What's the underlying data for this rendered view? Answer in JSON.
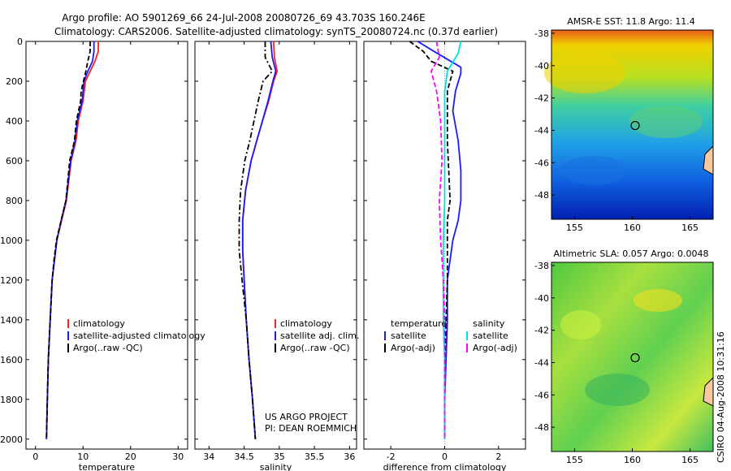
{
  "colors": {
    "climatology": "#ff2020",
    "satellite": "#1a1aff",
    "argo": "#000000",
    "sal_satellite": "#00e0e0",
    "sal_argo": "#ff00ff"
  },
  "title": {
    "line1": "Argo profile: AO 5901269_66 24-Jul-2008 20080726_69 43.703S 160.246E",
    "line2": "Climatology: CARS2006. Satellite-adjusted climatology: synTS_20080724.nc (0.37d earlier)"
  },
  "credits": {
    "line1": "US ARGO PROJECT",
    "line2": "PI: DEAN ROEMMICH"
  },
  "side_label": "CSIRO 04-Aug-2008 10:31:16",
  "legends": {
    "temperature": [
      "climatology",
      "satellite-adjusted climatology",
      "Argo(..raw -QC)"
    ],
    "salinity": [
      "climatology",
      "satellite adj. clim.",
      "Argo(..raw -QC)"
    ],
    "difference": {
      "head_t": "temperature",
      "head_s": "salinity",
      "sat": "satellite",
      "argo": "Argo(-adj)"
    }
  },
  "chart_data": [
    {
      "type": "line",
      "title": "",
      "xlabel": "temperature",
      "ylabel": "",
      "xlim": [
        -2,
        32
      ],
      "ylim": [
        2050,
        0
      ],
      "xticks": [
        0,
        10,
        20,
        30
      ],
      "yticks": [
        0,
        200,
        400,
        600,
        800,
        1000,
        1200,
        1400,
        1600,
        1800,
        2000
      ],
      "series": [
        {
          "name": "climatology",
          "style": "solid",
          "color": "climatology",
          "x": [
            13.2,
            13.2,
            12.5,
            11.5,
            10.5,
            10,
            9,
            8.5,
            7.5,
            6.5,
            5.5,
            4.5,
            4,
            3.5,
            3.1,
            2.7,
            2.5,
            2.3
          ],
          "y": [
            0,
            50,
            100,
            150,
            200,
            300,
            400,
            500,
            600,
            800,
            900,
            1000,
            1100,
            1200,
            1400,
            1600,
            1800,
            2000
          ]
        },
        {
          "name": "satellite-adjusted climatology",
          "style": "solid",
          "color": "satellite",
          "x": [
            12.3,
            12.3,
            12.0,
            11.0,
            10.2,
            9.8,
            8.8,
            8.3,
            7.4,
            6.4,
            5.4,
            4.5,
            4,
            3.5,
            3.1,
            2.7,
            2.5,
            2.3
          ],
          "y": [
            0,
            50,
            100,
            150,
            200,
            300,
            400,
            500,
            600,
            800,
            900,
            1000,
            1100,
            1200,
            1400,
            1600,
            1800,
            2000
          ]
        },
        {
          "name": "Argo(..raw -QC)",
          "style": "dash",
          "color": "argo",
          "x": [
            11.5,
            11.5,
            11,
            10.6,
            9.6,
            9.5,
            8.6,
            8.2,
            7.2,
            6.4,
            5.4,
            4.4,
            3.9,
            3.5,
            3.1,
            2.7,
            2.5,
            2.3
          ],
          "y": [
            0,
            50,
            100,
            150,
            250,
            300,
            400,
            500,
            600,
            800,
            900,
            1000,
            1100,
            1200,
            1400,
            1600,
            1800,
            2000
          ]
        }
      ]
    },
    {
      "type": "line",
      "title": "",
      "xlabel": "salinity",
      "ylabel": "",
      "xlim": [
        33.8,
        36.1
      ],
      "ylim": [
        2050,
        0
      ],
      "xticks": [
        34,
        34.5,
        35,
        35.5,
        36
      ],
      "yticks": [
        0,
        200,
        400,
        600,
        800,
        1000,
        1200,
        1400,
        1600,
        1800,
        2000
      ],
      "series": [
        {
          "name": "climatology",
          "style": "solid",
          "color": "climatology",
          "x": [
            34.92,
            34.93,
            34.97,
            34.92,
            34.85,
            34.76,
            34.68,
            34.6,
            34.52,
            34.48,
            34.48,
            34.5,
            34.53,
            34.57,
            34.62,
            34.66
          ],
          "y": [
            0,
            80,
            150,
            200,
            300,
            400,
            500,
            600,
            750,
            900,
            1050,
            1200,
            1400,
            1600,
            1800,
            2000
          ]
        },
        {
          "name": "satellite adj. clim.",
          "style": "solid",
          "color": "satellite",
          "x": [
            34.88,
            34.9,
            34.95,
            34.91,
            34.84,
            34.76,
            34.68,
            34.6,
            34.52,
            34.48,
            34.48,
            34.5,
            34.53,
            34.57,
            34.62,
            34.66
          ],
          "y": [
            0,
            80,
            150,
            200,
            300,
            400,
            500,
            600,
            750,
            900,
            1050,
            1200,
            1400,
            1600,
            1800,
            2000
          ]
        },
        {
          "name": "Argo(..raw -QC)",
          "style": "dashdot",
          "color": "argo",
          "x": [
            34.8,
            34.8,
            34.9,
            34.77,
            34.7,
            34.64,
            34.58,
            34.51,
            34.45,
            34.43,
            34.43,
            34.47,
            34.53,
            34.57,
            34.62,
            34.66
          ],
          "y": [
            0,
            80,
            150,
            200,
            300,
            400,
            500,
            600,
            750,
            900,
            1050,
            1200,
            1400,
            1600,
            1800,
            2000
          ]
        }
      ]
    },
    {
      "type": "line",
      "title": "",
      "xlabel": "difference from climatology",
      "ylabel": "",
      "xlim": [
        -3,
        3
      ],
      "ylim": [
        2050,
        0
      ],
      "xticks": [
        -2,
        0,
        2
      ],
      "yticks": [
        0,
        200,
        400,
        600,
        800,
        1000,
        1200,
        1400,
        1600,
        1800,
        2000
      ],
      "series": [
        {
          "name": "temperature satellite",
          "style": "solid",
          "color": "satellite",
          "x": [
            -1.0,
            -0.4,
            0.6,
            0.6,
            0.4,
            0.3,
            0.5,
            0.6,
            0.6,
            0.5,
            0.3,
            0.2,
            0.1,
            0.1,
            0.05,
            0,
            0
          ],
          "y": [
            0,
            50,
            130,
            160,
            250,
            350,
            500,
            650,
            800,
            900,
            1000,
            1100,
            1200,
            1400,
            1600,
            1800,
            2000
          ]
        },
        {
          "name": "temperature Argo(-adj)",
          "style": "dash",
          "color": "argo",
          "x": [
            -1.3,
            -0.8,
            -0.5,
            0.3,
            0.1,
            0.1,
            0.1,
            0.15,
            0.2,
            0.1,
            0.1,
            0.1,
            0.1,
            0.05,
            0,
            0,
            0
          ],
          "y": [
            0,
            50,
            100,
            150,
            250,
            350,
            500,
            650,
            800,
            900,
            1000,
            1100,
            1200,
            1400,
            1600,
            1800,
            2000
          ]
        },
        {
          "name": "salinity satellite",
          "style": "solid",
          "color": "sal_satellite",
          "x": [
            0.6,
            0.5,
            0.1,
            0,
            0,
            0,
            0,
            -0.05,
            -0.05,
            -0.05,
            0,
            0,
            0,
            0,
            0,
            0
          ],
          "y": [
            0,
            60,
            150,
            250,
            400,
            600,
            800,
            1000,
            1200,
            1400,
            1600,
            1700,
            1800,
            1900,
            1950,
            2000
          ]
        },
        {
          "name": "salinity Argo(-adj)",
          "style": "dash",
          "color": "sal_argo",
          "x": [
            -0.3,
            -0.2,
            -0.5,
            -0.3,
            -0.15,
            -0.1,
            -0.2,
            -0.15,
            -0.1,
            -0.05,
            0,
            0,
            0,
            0
          ],
          "y": [
            0,
            80,
            150,
            250,
            400,
            600,
            800,
            1000,
            1100,
            1200,
            1400,
            1600,
            1800,
            2000
          ]
        }
      ]
    },
    {
      "type": "heatmap",
      "title": "AMSR-E SST: 11.8  Argo: 11.4",
      "xlim": [
        153,
        167
      ],
      "ylim": [
        -49.5,
        -37.8
      ],
      "xticks": [
        155,
        160,
        165
      ],
      "yticks": [
        -38,
        -40,
        -42,
        -44,
        -46,
        -48
      ],
      "marker": {
        "lon": 160.246,
        "lat": -43.703
      }
    },
    {
      "type": "heatmap",
      "title": "Altimetric SLA: 0.057  Argo: 0.0048",
      "xlim": [
        153,
        167
      ],
      "ylim": [
        -49.5,
        -37.8
      ],
      "xticks": [
        155,
        160,
        165
      ],
      "yticks": [
        -38,
        -40,
        -42,
        -44,
        -46,
        -48
      ],
      "marker": {
        "lon": 160.246,
        "lat": -43.703
      }
    }
  ]
}
